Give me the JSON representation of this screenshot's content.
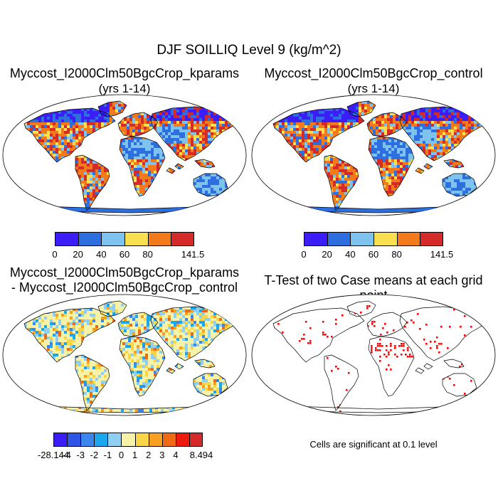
{
  "main_title": "DJF SOILLIQ Level 9 (kg/m^2)",
  "panels": {
    "top_left": {
      "title": "Myccost_I2000Clm50BgcCrop_kparams",
      "subtitle": "(yrs 1-14)"
    },
    "top_right": {
      "title": "Myccost_I2000Clm50BgcCrop_control",
      "subtitle": "(yrs 1-14)"
    },
    "bottom_left": {
      "title_line1": "Myccost_I2000Clm50BgcCrop_kparams",
      "title_line2": "- Myccost_I2000Clm50BgcCrop_control"
    },
    "bottom_right": {
      "title": "T-Test of two Case means at each grid point",
      "note": "Cells are significant at 0.1 level"
    }
  },
  "colorbar_abs": {
    "labels": [
      "0",
      "20",
      "40",
      "60",
      "80",
      "141.5"
    ],
    "colors": [
      "#3a1ef5",
      "#2e6fe0",
      "#7ec3ee",
      "#f8e050",
      "#f27a1a",
      "#d42a2a"
    ]
  },
  "colorbar_diff": {
    "labels": [
      "-28.144",
      "-4",
      "-3",
      "-2",
      "-1",
      "0",
      "1",
      "2",
      "3",
      "4",
      "8.494"
    ],
    "colors": [
      "#3a1ef5",
      "#2e55e6",
      "#3b86ec",
      "#1aa7ee",
      "#8fd0f2",
      "#f6f3a8",
      "#f9d648",
      "#f7a020",
      "#f06a15",
      "#ee1a0e",
      "#d42a2a"
    ]
  },
  "legend_colors": {
    "significant": "#ff0000"
  }
}
